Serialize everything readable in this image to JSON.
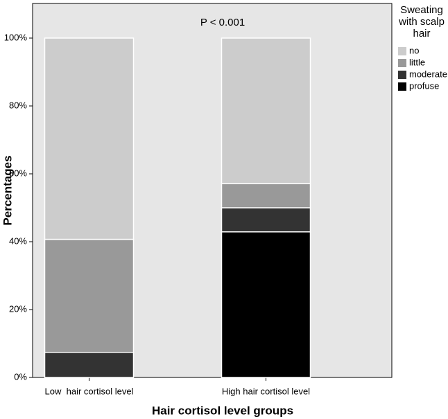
{
  "chart_data": {
    "type": "stacked_bar",
    "annotation": "P < 0.001",
    "x_label": "Hair cortisol level groups",
    "y_label": "Percentages",
    "legend_title": "Sweating with scalp hair",
    "legend_position": "right",
    "categories": [
      "Low  hair cortisol level",
      "High hair cortisol level"
    ],
    "series": [
      {
        "name": "profuse",
        "color": "#000000",
        "values": [
          0,
          42.9
        ]
      },
      {
        "name": "moderate",
        "color": "#333333",
        "values": [
          7.4,
          7.1
        ]
      },
      {
        "name": "little",
        "color": "#999999",
        "values": [
          33.3,
          7.1
        ]
      },
      {
        "name": "no",
        "color": "#cccccc",
        "values": [
          59.3,
          42.9
        ]
      }
    ],
    "ylim": [
      0,
      110.2
    ],
    "yticks": [
      {
        "value": 0,
        "label": "0%"
      },
      {
        "value": 20,
        "label": "20%"
      },
      {
        "value": 40,
        "label": "40%"
      },
      {
        "value": 60,
        "label": "60%"
      },
      {
        "value": 80,
        "label": "80%"
      },
      {
        "value": 100,
        "label": "100%"
      }
    ],
    "grid": false
  }
}
